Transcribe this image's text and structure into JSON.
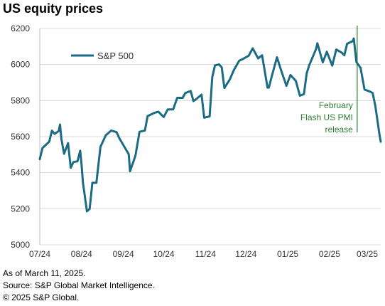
{
  "title": "US equity prices",
  "chart_data": {
    "type": "line",
    "title": "US equity prices",
    "xlabel": "",
    "ylabel": "",
    "ylim": [
      5000,
      6200
    ],
    "yticks": [
      5000,
      5200,
      5400,
      5600,
      5800,
      6000,
      6200
    ],
    "xticks": [
      "07/24",
      "08/24",
      "09/24",
      "10/24",
      "11/24",
      "12/24",
      "01/25",
      "02/25",
      "03/25"
    ],
    "grid": "horizontal",
    "legend": "top-left",
    "series": [
      {
        "name": "S&P 500",
        "color": "#1b6b84",
        "x": [
          "2024-07-01",
          "2024-07-03",
          "2024-07-08",
          "2024-07-10",
          "2024-07-12",
          "2024-07-15",
          "2024-07-16",
          "2024-07-17",
          "2024-07-19",
          "2024-07-22",
          "2024-07-24",
          "2024-07-26",
          "2024-07-29",
          "2024-07-31",
          "2024-08-01",
          "2024-08-02",
          "2024-08-05",
          "2024-08-07",
          "2024-08-09",
          "2024-08-12",
          "2024-08-15",
          "2024-08-19",
          "2024-08-21",
          "2024-08-23",
          "2024-08-27",
          "2024-08-29",
          "2024-09-03",
          "2024-09-05",
          "2024-09-06",
          "2024-09-10",
          "2024-09-13",
          "2024-09-17",
          "2024-09-19",
          "2024-09-24",
          "2024-09-27",
          "2024-10-01",
          "2024-10-04",
          "2024-10-08",
          "2024-10-11",
          "2024-10-15",
          "2024-10-17",
          "2024-10-21",
          "2024-10-23",
          "2024-10-25",
          "2024-10-29",
          "2024-10-31",
          "2024-11-04",
          "2024-11-06",
          "2024-11-08",
          "2024-11-11",
          "2024-11-13",
          "2024-11-15",
          "2024-11-19",
          "2024-11-22",
          "2024-11-26",
          "2024-11-29",
          "2024-12-03",
          "2024-12-06",
          "2024-12-10",
          "2024-12-13",
          "2024-12-17",
          "2024-12-18",
          "2024-12-20",
          "2024-12-24",
          "2024-12-27",
          "2024-12-31",
          "2025-01-03",
          "2025-01-07",
          "2025-01-10",
          "2025-01-13",
          "2025-01-15",
          "2025-01-17",
          "2025-01-22",
          "2025-01-23",
          "2025-01-27",
          "2025-01-30",
          "2025-02-03",
          "2025-02-06",
          "2025-02-10",
          "2025-02-12",
          "2025-02-14",
          "2025-02-18",
          "2025-02-19",
          "2025-02-21",
          "2025-02-24",
          "2025-02-27",
          "2025-03-03",
          "2025-03-05",
          "2025-03-07",
          "2025-03-10",
          "2025-03-11"
        ],
        "values": [
          5475,
          5537,
          5572,
          5633,
          5615,
          5631,
          5667,
          5588,
          5505,
          5564,
          5427,
          5459,
          5463,
          5522,
          5446,
          5347,
          5186,
          5199,
          5344,
          5344,
          5543,
          5608,
          5621,
          5634,
          5625,
          5592,
          5528,
          5503,
          5408,
          5495,
          5627,
          5634,
          5714,
          5732,
          5738,
          5709,
          5751,
          5751,
          5815,
          5815,
          5842,
          5853,
          5797,
          5808,
          5833,
          5705,
          5712,
          5929,
          5995,
          6001,
          5985,
          5870,
          5917,
          5969,
          6021,
          6032,
          6049,
          6090,
          6034,
          6051,
          5872,
          5872,
          5930,
          6040,
          5970,
          5882,
          5942,
          5909,
          5827,
          5836,
          5950,
          5997,
          6086,
          6118,
          6012,
          6071,
          5994,
          6083,
          6066,
          6051,
          6115,
          6129,
          6144,
          6013,
          5983,
          5861,
          5850,
          5842,
          5770,
          5615,
          5572
        ]
      }
    ],
    "annotations": [
      {
        "x": "2025-02-21",
        "label_lines": [
          "February",
          "Flash US PMI",
          "release"
        ],
        "color": "#2e7d32"
      }
    ]
  },
  "footer": {
    "line1": "As of March 11, 2025.",
    "line2": "Source: S&P Global Market Intelligence.",
    "line3": "© 2025 S&P Global."
  }
}
